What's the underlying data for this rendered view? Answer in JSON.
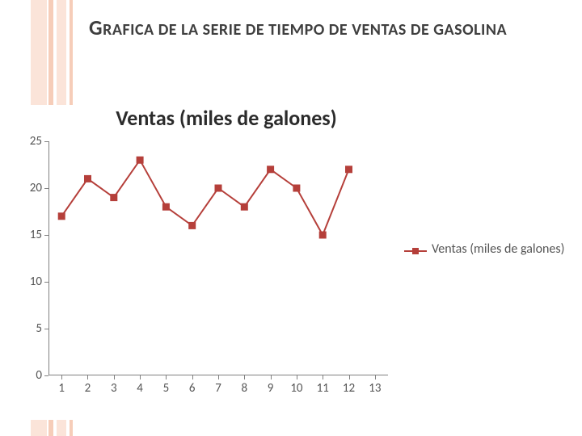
{
  "slide": {
    "title": "GRAFICA DE LA SERIE DE TIEMPO DE VENTAS DE GASOLINA",
    "title_color": "#3f3f3f",
    "title_fontsize": 20
  },
  "bands": {
    "colors": [
      "#fbe4d9",
      "#f6cdb9",
      "#fbe4d9",
      "#f6cdb9"
    ]
  },
  "chart": {
    "type": "line",
    "title": "Ventas (miles de galones)",
    "title_fontsize": 26,
    "title_color": "#2b2b2b",
    "background_color": "#ffffff",
    "axis_color": "#808080",
    "tick_label_color": "#555555",
    "tick_label_fontsize": 15,
    "x": {
      "categories": [
        "1",
        "2",
        "3",
        "4",
        "5",
        "6",
        "7",
        "8",
        "9",
        "10",
        "11",
        "12",
        "13"
      ],
      "lim": [
        0.5,
        13.5
      ]
    },
    "y": {
      "lim": [
        0,
        25
      ],
      "ticks": [
        0,
        5,
        10,
        15,
        20,
        25
      ]
    },
    "series": [
      {
        "name": "Ventas (miles de galones)",
        "values": [
          17,
          21,
          19,
          23,
          18,
          16,
          20,
          18,
          22,
          20,
          15,
          22,
          null
        ],
        "color": "#b53f3a",
        "line_width": 2,
        "marker": "square",
        "marker_size": 9
      }
    ],
    "legend": {
      "position": "right",
      "label": "Ventas (miles de galones)",
      "fontsize": 16,
      "color": "#555555"
    }
  }
}
